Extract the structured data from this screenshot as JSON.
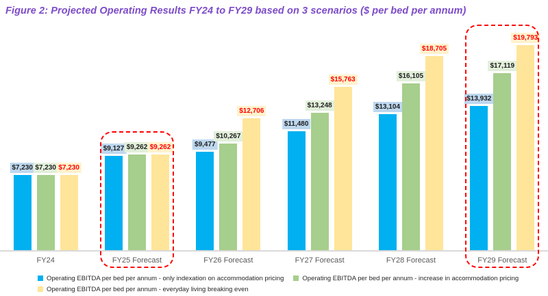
{
  "title": {
    "text": "Figure 2: Projected Operating Results FY24 to FY29 based on 3 scenarios ($ per bed per annum)",
    "color": "#7C4BC8"
  },
  "chart_data": {
    "type": "bar",
    "title": "Figure 2: Projected Operating Results FY24 to FY29 based on 3 scenarios ($ per bed per annum)",
    "categories": [
      "FY24",
      "FY25 Forecast",
      "FY26 Forecast",
      "FY27 Forecast",
      "FY28 Forecast",
      "FY29 Forecast"
    ],
    "series": [
      {
        "key": "only-indexation",
        "name": "Operating EBITDA per bed per annum - only indexation on accommodation pricing",
        "color": "#00B0F0",
        "label_bg": "#BDD7EE",
        "label_color": "#1F1F1F",
        "values": [
          7230,
          9127,
          9477,
          11480,
          13104,
          13932
        ]
      },
      {
        "key": "increase-accommodation-pricing",
        "name": "Operating EBITDA per bed per annum - increase in accommodation pricing",
        "color": "#A6CE8C",
        "label_bg": "#E2EFDA",
        "label_color": "#1F1F1F",
        "values": [
          7230,
          9262,
          10267,
          13248,
          16105,
          17119
        ]
      },
      {
        "key": "everyday-living-breaking-even",
        "name": "Operating EBITDA per bed per annum - everyday living breaking even",
        "color": "#FFE599",
        "label_bg": "#FFF2CC",
        "label_color": "#FF0000",
        "values": [
          7230,
          9262,
          12706,
          15763,
          18705,
          19793
        ]
      }
    ],
    "value_prefix": "$",
    "ylim": [
      0,
      20000
    ],
    "grid": false,
    "y_axis_shown": false,
    "legend_position": "bottom",
    "legend_rows": [
      [
        0,
        1
      ],
      [
        2
      ]
    ],
    "highlighted_categories": [
      "FY25 Forecast",
      "FY29 Forecast"
    ],
    "highlight_color": "#FF0000",
    "axis_line_color": "#D9D9D9",
    "axis_label_color": "#595959"
  }
}
